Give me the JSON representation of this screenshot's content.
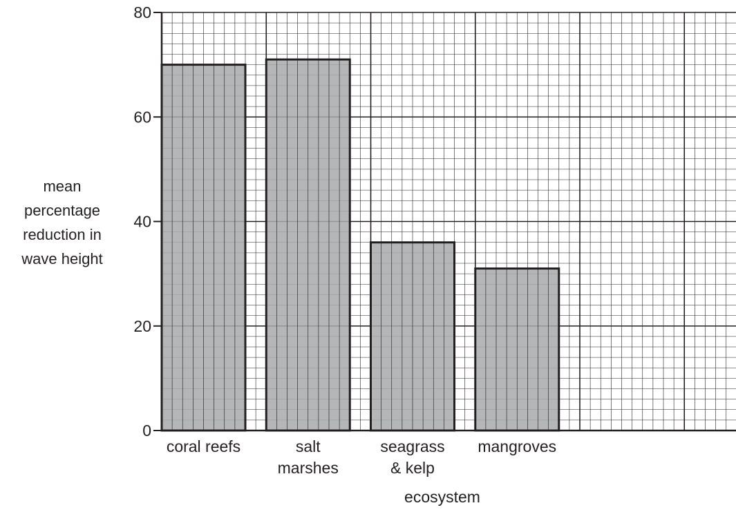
{
  "chart_data": {
    "type": "bar",
    "categories": [
      [
        "coral reefs"
      ],
      [
        "salt",
        "marshes"
      ],
      [
        "seagrass",
        "& kelp"
      ],
      [
        "mangroves"
      ]
    ],
    "values": [
      70,
      71,
      36,
      31
    ],
    "xlabel": "ecosystem",
    "ylabel": [
      "mean",
      "percentage",
      "reduction in",
      "wave height"
    ],
    "ylim": [
      0,
      80
    ],
    "yticks": [
      0,
      20,
      40,
      60,
      80
    ],
    "grid": true,
    "minor_grid_step": 2,
    "bar_color": "#a7a9ac",
    "grid_color": "#231f20"
  }
}
